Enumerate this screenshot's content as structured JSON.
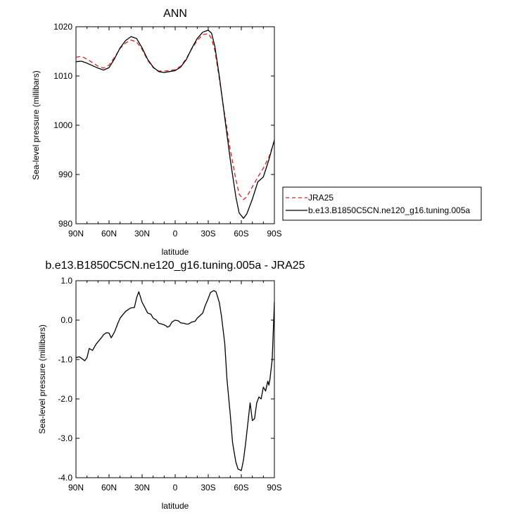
{
  "chart_data": [
    {
      "type": "line",
      "title": "ANN",
      "xlabel": "latitude",
      "ylabel": "Sea-level pressure (millibars)",
      "xlim": [
        90,
        -90
      ],
      "ylim": [
        980,
        1020
      ],
      "x_tick_values": [
        90,
        60,
        30,
        0,
        -30,
        -60,
        -90
      ],
      "x_tick_labels": [
        "90N",
        "60N",
        "30N",
        "0",
        "30S",
        "60S",
        "90S"
      ],
      "y_tick_values": [
        980,
        990,
        1000,
        1010,
        1020
      ],
      "y_tick_labels": [
        "980",
        "990",
        "1000",
        "1010",
        "1020"
      ],
      "legend_position": "right",
      "series": [
        {
          "name": "JRA25",
          "color": "#e41a1c",
          "dash": "dashed",
          "x": [
            90,
            85,
            80,
            75,
            70,
            65,
            60,
            55,
            50,
            45,
            40,
            35,
            30,
            25,
            20,
            15,
            10,
            5,
            0,
            -5,
            -10,
            -15,
            -20,
            -25,
            -30,
            -33,
            -36,
            -40,
            -45,
            -50,
            -55,
            -58,
            -62,
            -65,
            -70,
            -75,
            -80,
            -85,
            -90
          ],
          "y": [
            1013.8,
            1014.0,
            1013.4,
            1012.7,
            1012.0,
            1011.6,
            1012.2,
            1013.8,
            1015.6,
            1016.7,
            1017.3,
            1016.9,
            1015.4,
            1013.2,
            1011.7,
            1011.0,
            1011.0,
            1011.1,
            1011.3,
            1012.0,
            1013.5,
            1015.5,
            1017.2,
            1018.4,
            1018.6,
            1017.6,
            1015.2,
            1009.5,
            1002.0,
            995.0,
            989.0,
            986.0,
            984.9,
            985.5,
            987.5,
            989.5,
            991.3,
            993.5,
            996.8
          ]
        },
        {
          "name": "b.e13.B1850C5CN.ne120_g16.tuning.005a",
          "color": "#000000",
          "dash": "solid",
          "x": [
            90,
            85,
            80,
            75,
            70,
            65,
            60,
            55,
            50,
            45,
            40,
            35,
            30,
            25,
            20,
            15,
            10,
            5,
            0,
            -5,
            -10,
            -15,
            -20,
            -25,
            -30,
            -33,
            -36,
            -40,
            -45,
            -50,
            -55,
            -58,
            -62,
            -65,
            -70,
            -75,
            -80,
            -85,
            -90
          ],
          "y": [
            1012.9,
            1013.0,
            1012.6,
            1012.1,
            1011.6,
            1011.2,
            1011.7,
            1013.5,
            1015.7,
            1017.2,
            1018.0,
            1017.6,
            1015.7,
            1013.4,
            1011.8,
            1010.9,
            1010.7,
            1010.9,
            1011.1,
            1011.8,
            1013.3,
            1015.6,
            1017.6,
            1018.9,
            1019.3,
            1018.7,
            1016.0,
            1010.0,
            1001.5,
            993.0,
            985.5,
            982.2,
            981.1,
            982.0,
            985.0,
            988.5,
            989.5,
            993.0,
            997.0
          ]
        }
      ]
    },
    {
      "type": "line",
      "title": "b.e13.B1850C5CN.ne120_g16.tuning.005a - JRA25",
      "xlabel": "latitude",
      "ylabel": "Sea-level pressure (millibars)",
      "xlim": [
        90,
        -90
      ],
      "ylim": [
        -4.0,
        1.0
      ],
      "x_tick_values": [
        90,
        60,
        30,
        0,
        -30,
        -60,
        -90
      ],
      "x_tick_labels": [
        "90N",
        "60N",
        "30N",
        "0",
        "30S",
        "60S",
        "90S"
      ],
      "y_tick_values": [
        -4,
        -3,
        -2,
        -1,
        0,
        1
      ],
      "y_tick_labels": [
        "-4.0",
        "-3.0",
        "-2.0",
        "-1.0",
        "0.0",
        "1.0"
      ],
      "series": [
        {
          "color": "#000000",
          "dash": "solid",
          "x": [
            90,
            87,
            85,
            82,
            80,
            78,
            75,
            72,
            70,
            67,
            65,
            63,
            62,
            60,
            58,
            55,
            52,
            50,
            48,
            45,
            42,
            40,
            37,
            35,
            33,
            30,
            28,
            25,
            22,
            20,
            17,
            15,
            12,
            10,
            8,
            7,
            5,
            3,
            0,
            -3,
            -5,
            -8,
            -10,
            -12,
            -15,
            -18,
            -20,
            -22,
            -25,
            -27,
            -30,
            -32,
            -35,
            -37,
            -40,
            -42,
            -45,
            -47,
            -50,
            -52,
            -55,
            -57,
            -60,
            -62,
            -64,
            -66,
            -68,
            -70,
            -72,
            -74,
            -76,
            -78,
            -80,
            -82,
            -84,
            -85,
            -86,
            -88,
            -90
          ],
          "y": [
            -0.95,
            -0.93,
            -0.97,
            -1.03,
            -0.95,
            -0.72,
            -0.77,
            -0.62,
            -0.55,
            -0.45,
            -0.37,
            -0.33,
            -0.32,
            -0.33,
            -0.45,
            -0.3,
            -0.08,
            0.05,
            0.12,
            0.22,
            0.28,
            0.31,
            0.32,
            0.57,
            0.72,
            0.45,
            0.35,
            0.18,
            0.15,
            0.05,
            0.0,
            -0.08,
            -0.1,
            -0.12,
            -0.15,
            -0.18,
            -0.15,
            -0.05,
            0.0,
            -0.02,
            -0.07,
            -0.08,
            -0.1,
            -0.1,
            -0.05,
            -0.03,
            0.05,
            0.1,
            0.18,
            0.35,
            0.55,
            0.7,
            0.75,
            0.72,
            0.45,
            0.1,
            -0.6,
            -1.5,
            -2.4,
            -3.1,
            -3.6,
            -3.78,
            -3.82,
            -3.55,
            -3.1,
            -2.6,
            -2.1,
            -2.55,
            -2.5,
            -2.1,
            -1.95,
            -2.0,
            -1.7,
            -1.8,
            -1.55,
            -1.65,
            -1.5,
            -1.0,
            0.45
          ]
        }
      ]
    }
  ]
}
